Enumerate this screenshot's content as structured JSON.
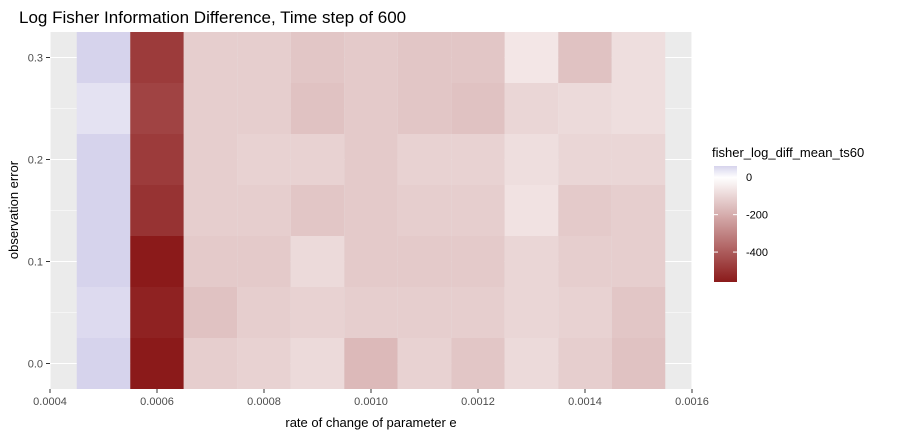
{
  "chart_data": {
    "type": "heatmap",
    "title": "Log Fisher Information Difference, Time step of 600",
    "xlabel": "rate of change of parameter e",
    "ylabel": "observation error",
    "xlim": [
      0.0004,
      0.0016
    ],
    "ylim": [
      -0.025,
      0.325
    ],
    "x_ticks": [
      0.0004,
      0.0006,
      0.0008,
      0.001,
      0.0012,
      0.0014,
      0.0016
    ],
    "x_tick_labels": [
      "0.0004",
      "0.0006",
      "0.0008",
      "0.0010",
      "0.0012",
      "0.0014",
      "0.0016"
    ],
    "y_ticks": [
      0.0,
      0.1,
      0.2,
      0.3
    ],
    "y_tick_labels": [
      "0.0",
      "0.1",
      "0.2",
      "0.3"
    ],
    "x": [
      0.0005,
      0.0006,
      0.0007,
      0.0008,
      0.0009,
      0.001,
      0.0011,
      0.0012,
      0.0013,
      0.0014,
      0.0015
    ],
    "y": [
      0.3,
      0.25,
      0.2,
      0.15,
      0.1,
      0.05,
      0.0
    ],
    "z": [
      [
        60,
        -480,
        -120,
        -120,
        -140,
        -130,
        -140,
        -140,
        -60,
        -150,
        -80
      ],
      [
        40,
        -460,
        -120,
        -120,
        -150,
        -130,
        -140,
        -150,
        -100,
        -90,
        -80
      ],
      [
        60,
        -480,
        -120,
        -110,
        -110,
        -130,
        -110,
        -110,
        -80,
        -100,
        -100
      ],
      [
        60,
        -500,
        -120,
        -120,
        -140,
        -130,
        -120,
        -120,
        -70,
        -130,
        -120
      ],
      [
        60,
        -560,
        -130,
        -130,
        -90,
        -130,
        -130,
        -130,
        -100,
        -120,
        -120
      ],
      [
        50,
        -540,
        -150,
        -120,
        -110,
        -120,
        -120,
        -120,
        -100,
        -110,
        -140
      ],
      [
        60,
        -560,
        -120,
        -110,
        -90,
        -170,
        -110,
        -140,
        -90,
        -120,
        -150
      ]
    ],
    "colorscale": {
      "low": "#8b1a1a",
      "mid": "#ffffff",
      "high": "#d6d3ec",
      "midpoint": 0,
      "range": [
        -560,
        60
      ]
    },
    "legend": {
      "title": "fisher_log_diff_mean_ts60",
      "position": "right",
      "ticks": [
        0,
        -200,
        -400
      ],
      "tick_labels": [
        "0",
        "-200",
        "-400"
      ]
    },
    "grid": true,
    "colors": {
      "panel_background": "#ebebeb",
      "grid_line": "#ffffff"
    }
  }
}
